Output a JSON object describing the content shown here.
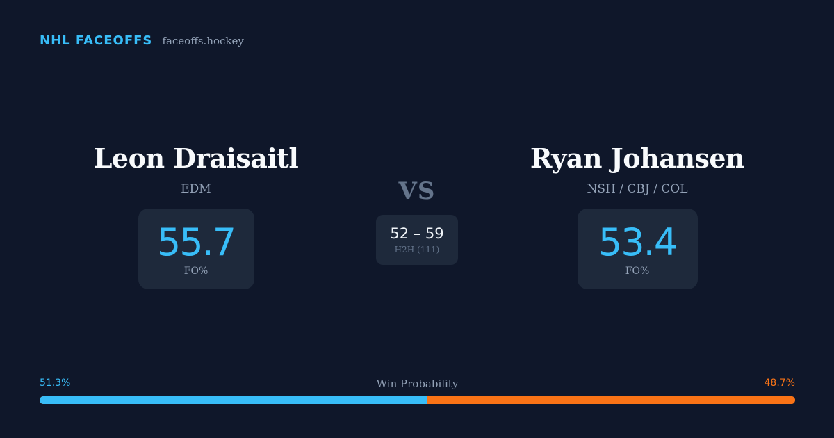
{
  "brand": {
    "name": "NHL FACEOFFS",
    "url": "faceoffs.hockey"
  },
  "player_left": {
    "name": "Leon Draisaitl",
    "team": "EDM",
    "fo_pct": "55.7",
    "fo_label": "FO%"
  },
  "player_right": {
    "name": "Ryan Johansen",
    "team": "NSH / CBJ / COL",
    "fo_pct": "53.4",
    "fo_label": "FO%"
  },
  "versus": {
    "label": "VS",
    "h2h_score": "52 – 59",
    "h2h_label": "H2H (111)"
  },
  "win_probability": {
    "title": "Win Probability",
    "left_pct_label": "51.3%",
    "right_pct_label": "48.7%",
    "left_pct": 51.3,
    "right_pct": 48.7
  },
  "colors": {
    "background": "#0f172a",
    "accent_blue": "#38bdf8",
    "accent_orange": "#f97316",
    "card": "#1e293b"
  }
}
